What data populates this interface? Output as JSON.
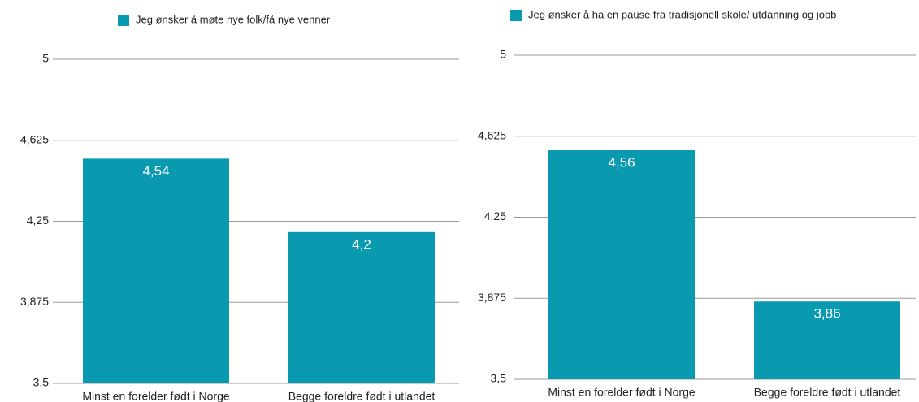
{
  "chart_data": [
    {
      "type": "bar",
      "legend": "Jeg ønsker å møte nye folk/få nye venner",
      "categories": [
        "Minst en forelder født i Norge",
        "Begge foreldre født i utlandet"
      ],
      "values": [
        4.54,
        4.2
      ],
      "value_labels": [
        "4,54",
        "4,2"
      ],
      "color": "#0a9aaf",
      "ylim": [
        3.5,
        5
      ],
      "yticks": [
        {
          "value": 3.5,
          "label": "3,5"
        },
        {
          "value": 3.875,
          "label": "3,875"
        },
        {
          "value": 4.25,
          "label": "4,25"
        },
        {
          "value": 4.625,
          "label": "4,625"
        },
        5
      ],
      "grid": true
    },
    {
      "type": "bar",
      "legend": "Jeg ønsker å ha en pause fra tradisjonell skole/ utdanning og jobb",
      "categories": [
        "Minst en forelder født i Norge",
        "Begge foreldre født i utlandet"
      ],
      "values": [
        4.56,
        3.86
      ],
      "value_labels": [
        "4,56",
        "3,86"
      ],
      "color": "#0a9aaf",
      "ylim": [
        3.5,
        5
      ],
      "yticks": [
        {
          "value": 3.5,
          "label": "3,5"
        },
        {
          "value": 3.875,
          "label": "3,875"
        },
        {
          "value": 4.25,
          "label": "4,25"
        },
        {
          "value": 4.625,
          "label": "4,625"
        },
        5
      ],
      "grid": true
    }
  ]
}
